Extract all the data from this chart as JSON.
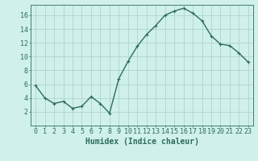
{
  "x": [
    0,
    1,
    2,
    3,
    4,
    5,
    6,
    7,
    8,
    9,
    10,
    11,
    12,
    13,
    14,
    15,
    16,
    17,
    18,
    19,
    20,
    21,
    22,
    23
  ],
  "y": [
    5.8,
    4.0,
    3.2,
    3.5,
    2.5,
    2.8,
    4.2,
    3.2,
    1.8,
    6.8,
    9.3,
    11.5,
    13.2,
    14.5,
    16.0,
    16.6,
    17.0,
    16.3,
    15.2,
    13.0,
    11.8,
    11.6,
    10.5,
    9.2
  ],
  "line_color": "#2e6b5e",
  "marker": "+",
  "marker_size": 3,
  "marker_edge_width": 0.8,
  "bg_color": "#cff0eb",
  "grid_color": "#aed4ce",
  "xlabel": "Humidex (Indice chaleur)",
  "ylim": [
    0,
    17.5
  ],
  "xlim": [
    -0.5,
    23.5
  ],
  "yticks": [
    2,
    4,
    6,
    8,
    10,
    12,
    14,
    16
  ],
  "xticks": [
    0,
    1,
    2,
    3,
    4,
    5,
    6,
    7,
    8,
    9,
    10,
    11,
    12,
    13,
    14,
    15,
    16,
    17,
    18,
    19,
    20,
    21,
    22,
    23
  ],
  "xlabel_fontsize": 7,
  "tick_fontsize": 6,
  "line_width": 1.0
}
